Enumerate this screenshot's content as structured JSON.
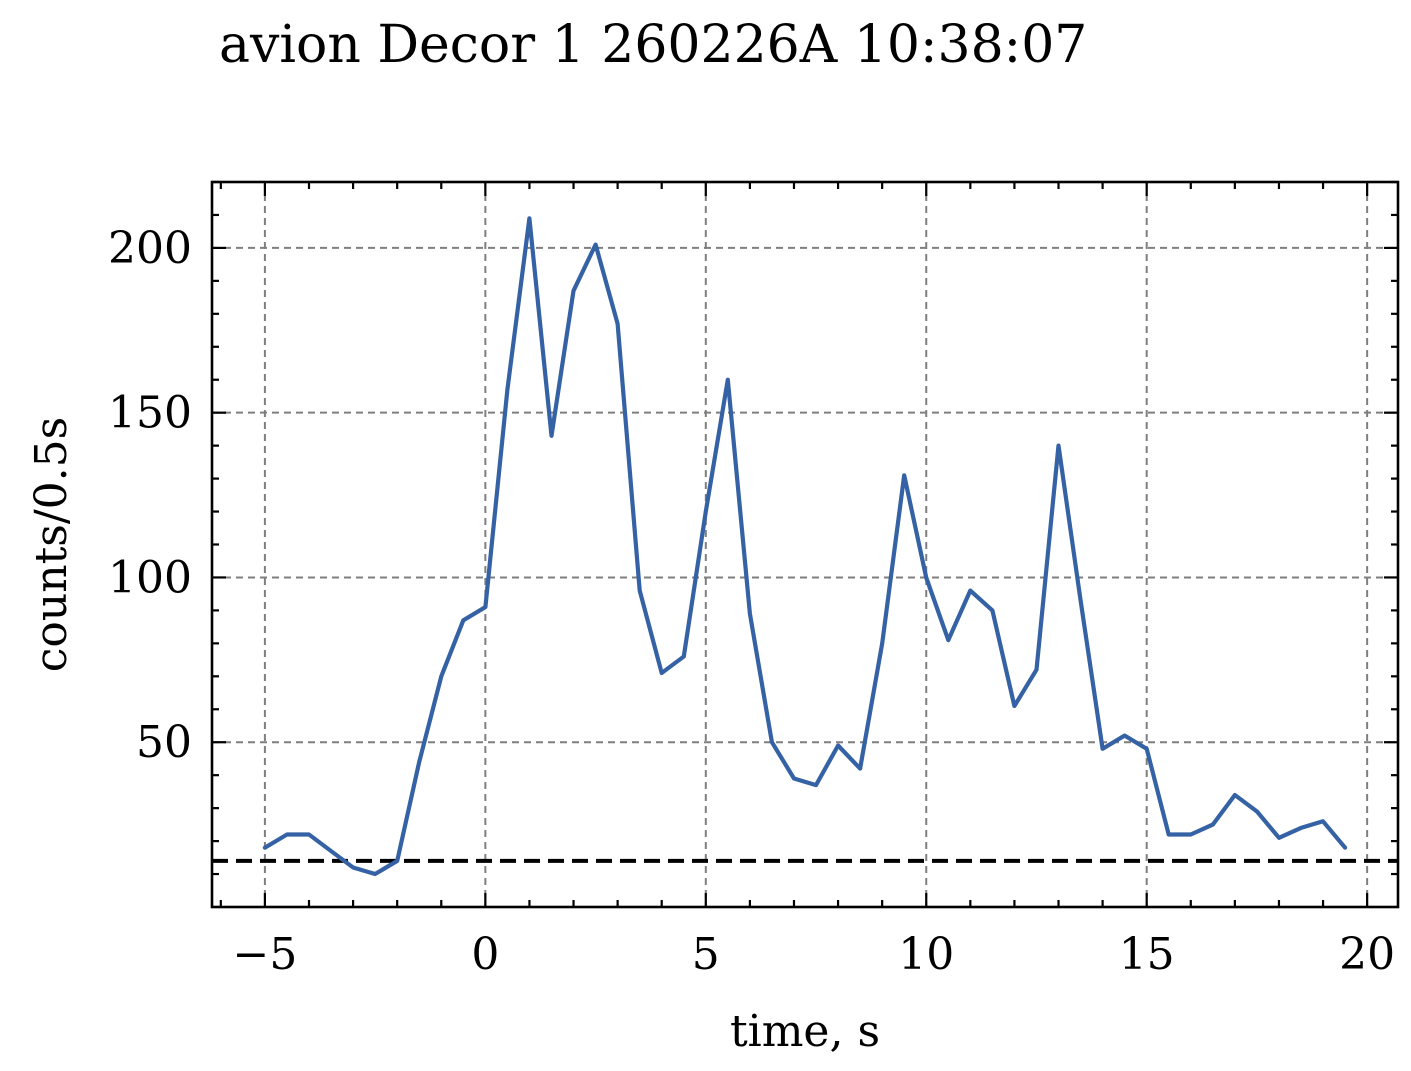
{
  "chart_data": {
    "type": "line",
    "title": "avion Decor 1 260226A 10:38:07",
    "xlabel": "time, s",
    "ylabel": "counts/0.5s",
    "xlim": [
      -6.2,
      20.7
    ],
    "ylim": [
      0,
      220
    ],
    "x_ticks": [
      -5,
      0,
      5,
      10,
      15,
      20
    ],
    "x_tick_labels": [
      "−5",
      "0",
      "5",
      "10",
      "15",
      "20"
    ],
    "y_ticks": [
      50,
      100,
      150,
      200
    ],
    "y_tick_labels": [
      "50",
      "100",
      "150",
      "200"
    ],
    "x_minor_step": 1,
    "y_minor_step": 10,
    "grid": true,
    "series": [
      {
        "color": "#3462a4",
        "x": [
          -5,
          -4.5,
          -4,
          -3.5,
          -3,
          -2.5,
          -2,
          -1.5,
          -1,
          -0.5,
          0,
          0.5,
          1,
          1.5,
          2,
          2.5,
          3,
          3.5,
          4,
          4.5,
          5,
          5.5,
          6,
          6.5,
          7,
          7.5,
          8,
          8.5,
          9,
          9.5,
          10,
          10.5,
          11,
          11.5,
          12,
          12.5,
          13,
          13.5,
          14,
          14.5,
          15,
          15.5,
          16,
          16.5,
          17,
          17.5,
          18,
          18.5,
          19,
          19.5
        ],
        "y": [
          18,
          22,
          22,
          17,
          12,
          10,
          14,
          44,
          70,
          87,
          91,
          157,
          209,
          143,
          187,
          201,
          177,
          96,
          71,
          76,
          120,
          160,
          89,
          50,
          39,
          37,
          49,
          42,
          80,
          131,
          100,
          81,
          96,
          90,
          61,
          72,
          140,
          93,
          48,
          52,
          48,
          22,
          22,
          25,
          34,
          29,
          21,
          24,
          26,
          18
        ]
      }
    ],
    "background_level": {
      "y": 14,
      "color": "#000000",
      "style": "dashed"
    },
    "colors": {
      "grid": "#7f7f7f",
      "axes": "#000000"
    }
  }
}
